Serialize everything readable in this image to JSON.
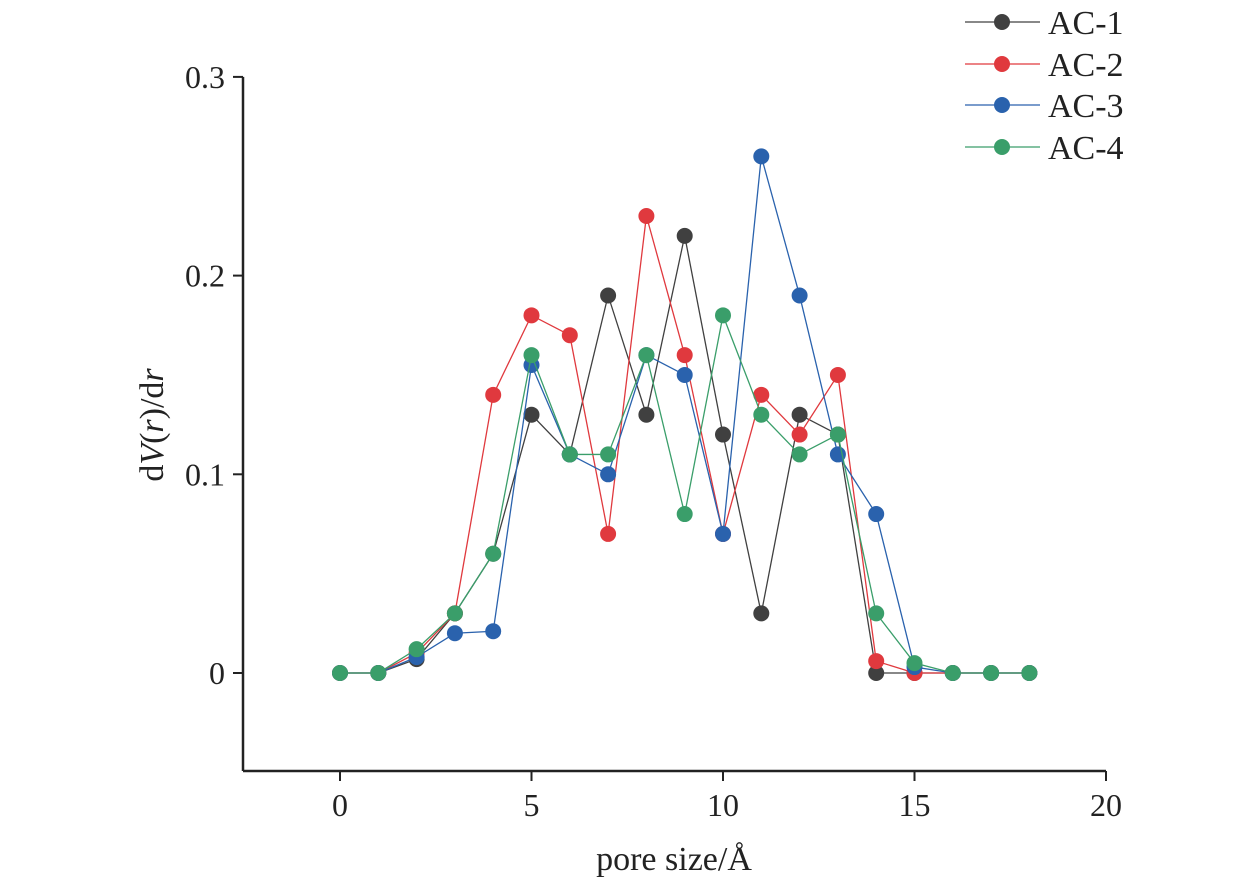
{
  "chart_data": {
    "type": "line",
    "xlabel": "pore size/Å",
    "ylabel_parts": [
      "d",
      "V",
      "(",
      "r",
      ")/d",
      "r"
    ],
    "xlim": [
      -2.5,
      20
    ],
    "ylim": [
      -0.05,
      0.3
    ],
    "xticks": [
      0,
      5,
      10,
      15,
      20
    ],
    "xtick_labels": [
      "0",
      "5",
      "10",
      "15",
      "20"
    ],
    "yticks": [
      0,
      0.1,
      0.2,
      0.3
    ],
    "ytick_labels": [
      "0",
      "0.1",
      "0.2",
      "0.3"
    ],
    "grid": false,
    "legend": "top-right",
    "x": [
      0,
      1,
      2,
      3,
      4,
      5,
      6,
      7,
      8,
      9,
      10,
      11,
      12,
      13,
      14,
      15,
      16,
      17,
      18
    ],
    "series": [
      {
        "name": "AC-1",
        "color": "#404040",
        "values": [
          0,
          0,
          0.007,
          0.03,
          0.06,
          0.13,
          0.11,
          0.19,
          0.13,
          0.22,
          0.12,
          0.03,
          0.13,
          0.12,
          0,
          0,
          0,
          0,
          0
        ]
      },
      {
        "name": "AC-2",
        "color": "#e0393e",
        "values": [
          0,
          0,
          0.01,
          0.03,
          0.14,
          0.18,
          0.17,
          0.07,
          0.23,
          0.16,
          0.07,
          0.14,
          0.12,
          0.15,
          0.006,
          0,
          0,
          0,
          0
        ]
      },
      {
        "name": "AC-3",
        "color": "#2a62ad",
        "values": [
          0,
          0,
          0.008,
          0.02,
          0.021,
          0.155,
          0.11,
          0.1,
          0.16,
          0.15,
          0.07,
          0.26,
          0.19,
          0.11,
          0.08,
          0.003,
          0,
          0,
          0
        ]
      },
      {
        "name": "AC-4",
        "color": "#3a9e6a",
        "values": [
          0,
          0,
          0.012,
          0.03,
          0.06,
          0.16,
          0.11,
          0.11,
          0.16,
          0.08,
          0.18,
          0.13,
          0.11,
          0.12,
          0.03,
          0.005,
          0,
          0,
          0
        ]
      }
    ]
  }
}
